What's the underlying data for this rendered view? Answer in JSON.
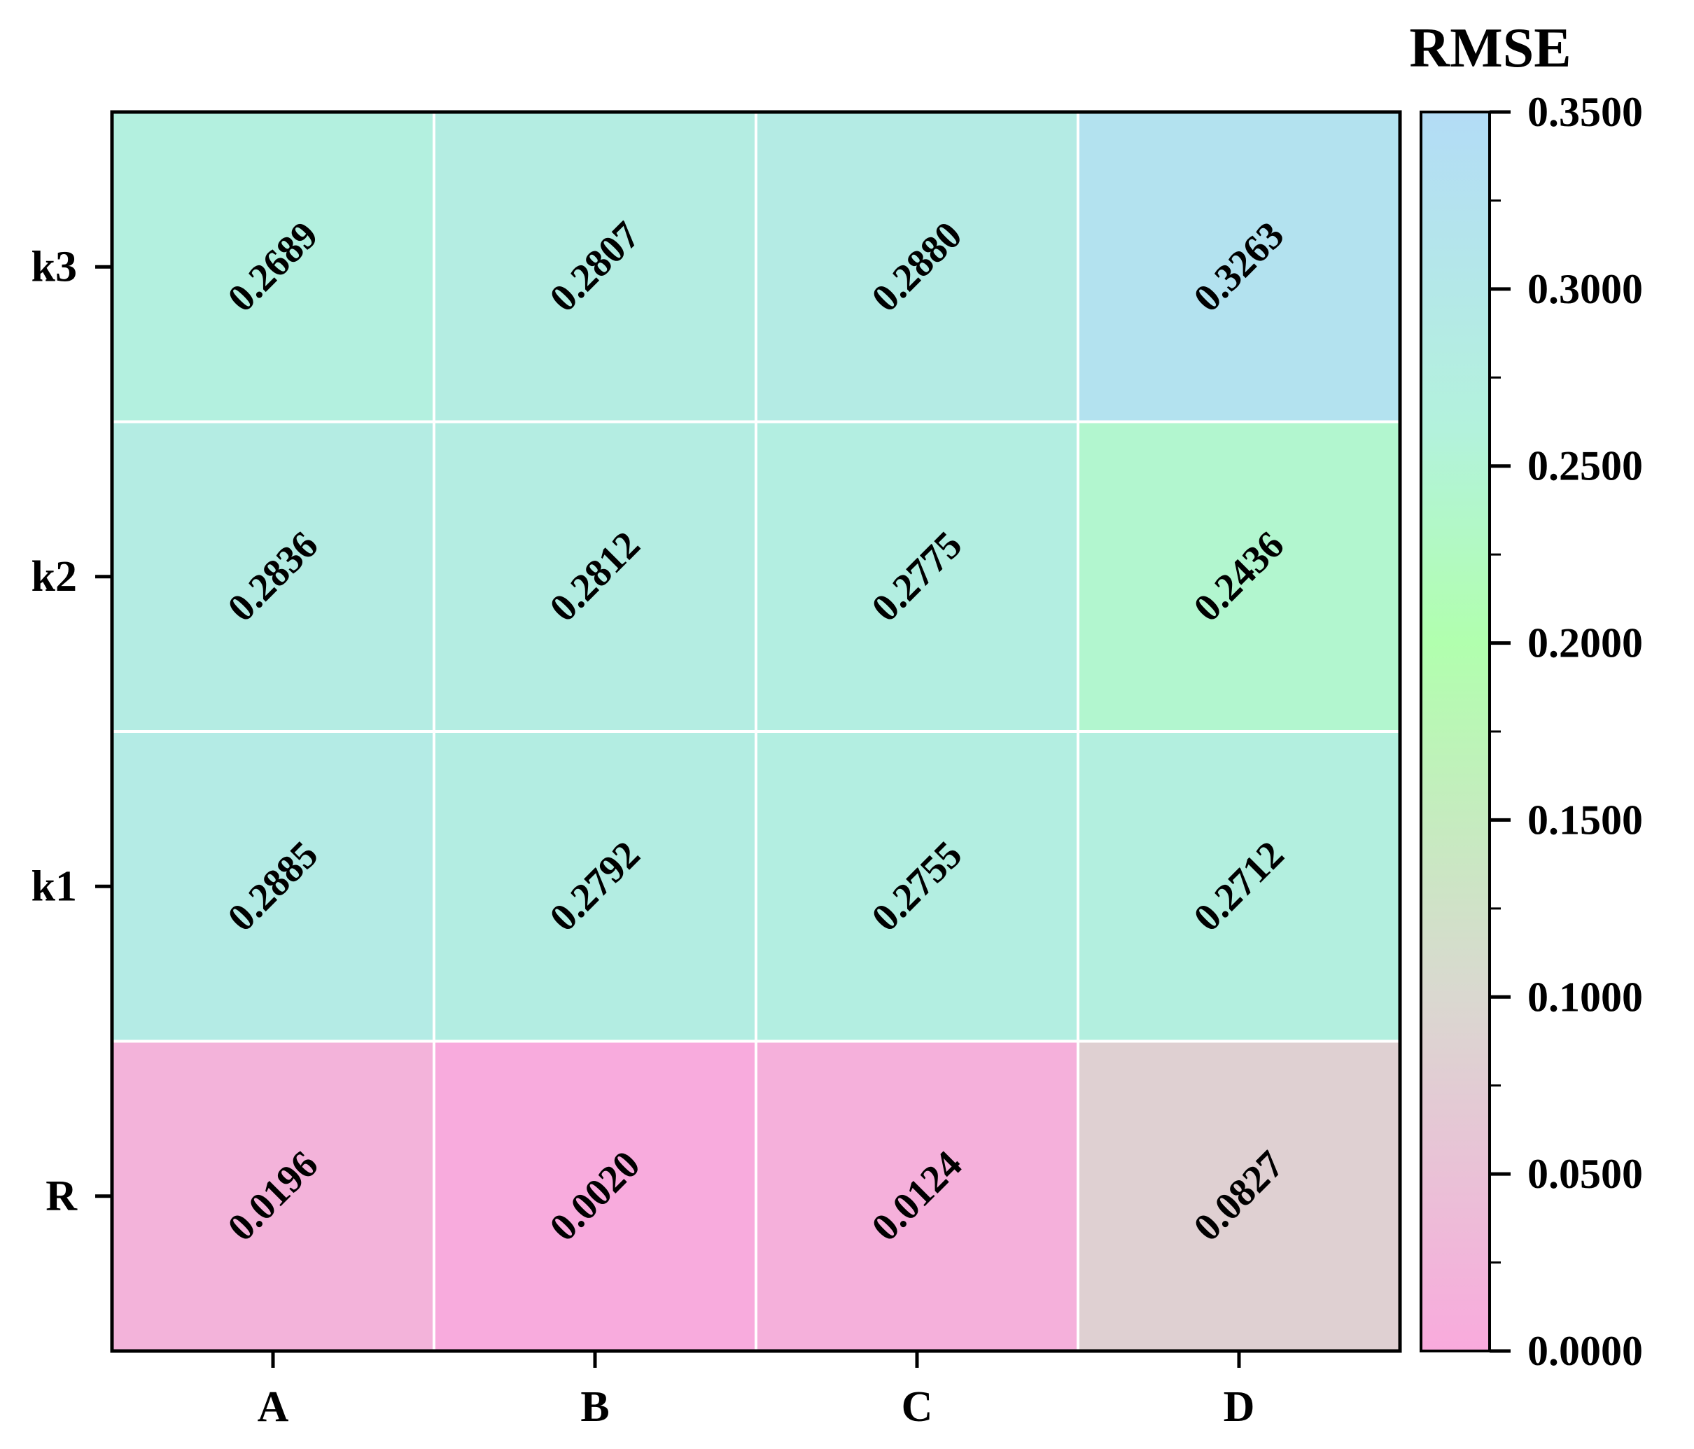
{
  "chart_data": {
    "type": "heatmap",
    "title": "",
    "xlabel": "",
    "ylabel": "",
    "x_categories": [
      "A",
      "B",
      "C",
      "D"
    ],
    "y_categories": [
      "R",
      "k1",
      "k2",
      "k3"
    ],
    "values": [
      [
        0.0196,
        0.002,
        0.0124,
        0.0827
      ],
      [
        0.2885,
        0.2792,
        0.2755,
        0.2712
      ],
      [
        0.2836,
        0.2812,
        0.2775,
        0.2436
      ],
      [
        0.2689,
        0.2807,
        0.288,
        0.3263
      ]
    ],
    "value_labels": [
      [
        "0.0196",
        "0.0020",
        "0.0124",
        "0.0827"
      ],
      [
        "0.2885",
        "0.2792",
        "0.2755",
        "0.2712"
      ],
      [
        "0.2836",
        "0.2812",
        "0.2775",
        "0.2436"
      ],
      [
        "0.2689",
        "0.2807",
        "0.2880",
        "0.3263"
      ]
    ],
    "colorbar": {
      "title": "RMSE",
      "range": [
        0,
        0.35
      ],
      "ticks": [
        0,
        0.05,
        0.1,
        0.15,
        0.2,
        0.25,
        0.3,
        0.35
      ],
      "tick_labels": [
        "0.0000",
        "0.0500",
        "0.1000",
        "0.1500",
        "0.2000",
        "0.2500",
        "0.3000",
        "0.3500"
      ],
      "colormap": [
        {
          "v": 0.0,
          "color": "#f9aadd"
        },
        {
          "v": 0.1,
          "color": "#dad8d0"
        },
        {
          "v": 0.2,
          "color": "#b1ffae"
        },
        {
          "v": 0.26,
          "color": "#b3f2dc"
        },
        {
          "v": 0.3,
          "color": "#b4e8e8"
        },
        {
          "v": 0.35,
          "color": "#b3dcf6"
        }
      ]
    },
    "grid": true
  }
}
